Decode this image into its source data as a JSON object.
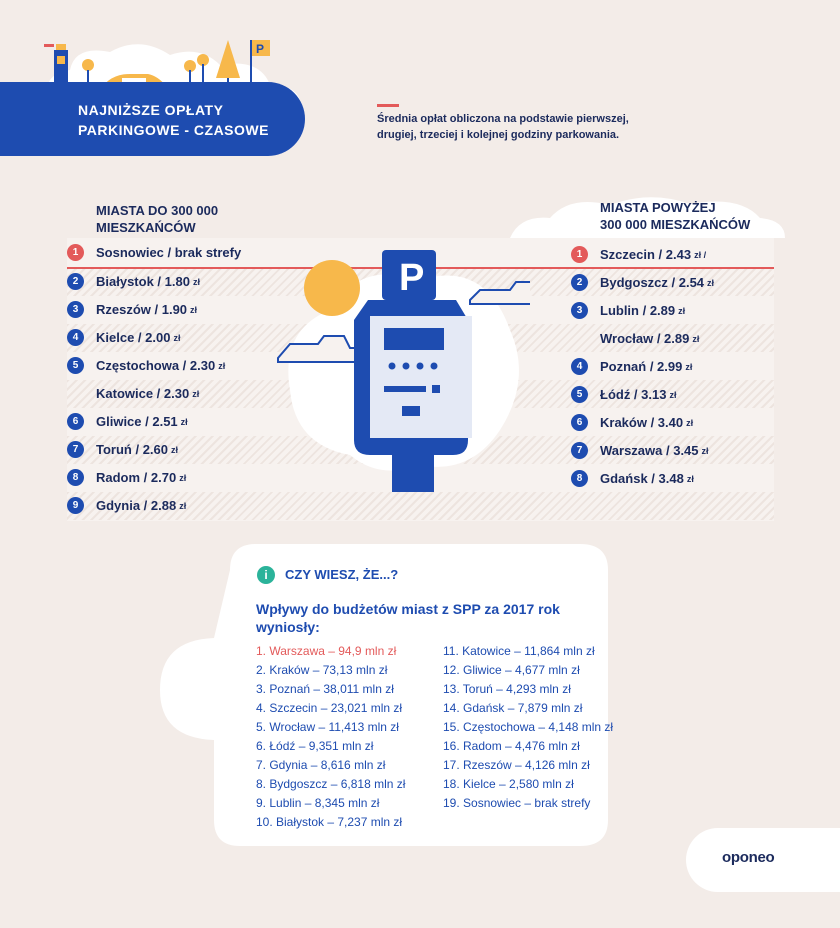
{
  "header": {
    "title_line1": "NAJNIŻSZE OPŁATY",
    "title_line2": "PARKINGOWE - CZASOWE",
    "note_line1": "Średnia opłat obliczona na podstawie pierwszej,",
    "note_line2": "drugiej, trzeciej i kolejnej godziny parkowania."
  },
  "left_column": {
    "heading_line1": "MIASTA DO 300 000",
    "heading_line2": "MIESZKAŃCÓW",
    "unit": "zł",
    "rows": [
      {
        "rank": "1",
        "city": "Sosnowiec / brak strefy",
        "price": ""
      },
      {
        "rank": "2",
        "city": "Białystok / 1.80",
        "price": "zł"
      },
      {
        "rank": "3",
        "city": "Rzeszów / 1.90",
        "price": "zł"
      },
      {
        "rank": "4",
        "city": "Kielce / 2.00",
        "price": "zł"
      },
      {
        "rank": "5",
        "city": "Częstochowa / 2.30",
        "price": "zł"
      },
      {
        "rank": "",
        "city": "Katowice / 2.30",
        "price": "zł"
      },
      {
        "rank": "6",
        "city": "Gliwice / 2.51",
        "price": "zł"
      },
      {
        "rank": "7",
        "city": "Toruń / 2.60",
        "price": "zł"
      },
      {
        "rank": "8",
        "city": "Radom / 2.70",
        "price": "zł"
      },
      {
        "rank": "9",
        "city": "Gdynia / 2.88",
        "price": "zł"
      }
    ]
  },
  "right_column": {
    "heading_line1": "MIASTA POWYŻEJ",
    "heading_line2": "300 000 MIESZKAŃCÓW",
    "rows": [
      {
        "rank": "1",
        "city": "Szczecin / 2.43",
        "price": "zł /"
      },
      {
        "rank": "2",
        "city": "Bydgoszcz / 2.54",
        "price": "zł"
      },
      {
        "rank": "3",
        "city": "Lublin / 2.89",
        "price": "zł"
      },
      {
        "rank": "",
        "city": "Wrocław / 2.89",
        "price": "zł"
      },
      {
        "rank": "4",
        "city": "Poznań / 2.99",
        "price": "zł"
      },
      {
        "rank": "5",
        "city": "Łódź / 3.13",
        "price": "zł"
      },
      {
        "rank": "6",
        "city": "Kraków / 3.40",
        "price": "zł"
      },
      {
        "rank": "7",
        "city": "Warszawa / 3.45",
        "price": "zł"
      },
      {
        "rank": "8",
        "city": "Gdańsk / 3.48",
        "price": "zł"
      }
    ]
  },
  "illustration": {
    "meter_letter": "P",
    "sign_letter": "P"
  },
  "info": {
    "icon": "i",
    "title": "CZY WIESZ, ŻE...?",
    "subtitle": "Wpływy do budżetów miast z SPP za 2017 rok wyniosły:",
    "list_left": [
      "1. Warszawa – 94,9 mln zł",
      "2. Kraków – 73,13 mln zł",
      "3. Poznań – 38,011 mln zł",
      "4. Szczecin – 23,021 mln zł",
      "5. Wrocław – 11,413 mln zł",
      "6. Łódź – 9,351 mln zł",
      "7. Gdynia – 8,616 mln zł",
      "8. Bydgoszcz – 6,818 mln zł",
      "9. Lublin – 8,345 mln zł",
      "10. Białystok – 7,237 mln zł"
    ],
    "list_right": [
      "11. Katowice – 11,864 mln zł",
      "12. Gliwice – 4,677 mln zł",
      "13. Toruń – 4,293 mln zł",
      "14. Gdańsk – 7,879 mln zł",
      "15. Częstochowa – 4,148 mln zł",
      "16. Radom – 4,476 mln zł",
      "17. Rzeszów – 4,126 mln zł",
      "18. Kielce – 2,580 mln zł",
      "19. Sosnowiec – brak strefy"
    ]
  },
  "logo": {
    "text": "oponeo"
  },
  "colors": {
    "background": "#f3ece8",
    "brand_blue": "#1e4cb0",
    "navy_text": "#1b2a5c",
    "accent_red": "#e35a5a",
    "sun_yellow": "#f7b84b",
    "info_green": "#2bb39a"
  }
}
